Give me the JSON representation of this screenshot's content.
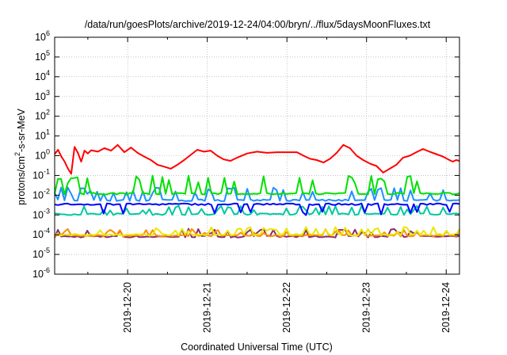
{
  "chart_data": {
    "type": "line",
    "title": "/data/run/goesPlots/archive/2019-12-24/04:00/bryn/../flux/5daysMoonFluxes.txt",
    "xlabel": "Coordinated Universal Time (UTC)",
    "ylabel": {
      "base": "protons/cm",
      "exp": "2",
      "rest": "-s-sr-MeV"
    },
    "x_range": [
      "2019-12-19T02:00",
      "2019-12-24T04:00"
    ],
    "ylim": [
      1e-06,
      1000000.0
    ],
    "y_scale": "log",
    "grid": true,
    "legend": "none",
    "x_ticks": [
      {
        "t": "2019-12-20T00:00",
        "label": "2019-12-20"
      },
      {
        "t": "2019-12-21T00:00",
        "label": "2019-12-21"
      },
      {
        "t": "2019-12-22T00:00",
        "label": "2019-12-22"
      },
      {
        "t": "2019-12-23T00:00",
        "label": "2019-12-23"
      },
      {
        "t": "2019-12-24T00:00",
        "label": "2019-12-24"
      }
    ],
    "y_ticks": [
      {
        "v": 1e-06,
        "base": "10",
        "exp": "-6"
      },
      {
        "v": 1e-05,
        "base": "10",
        "exp": "-5"
      },
      {
        "v": 0.0001,
        "base": "10",
        "exp": "-4"
      },
      {
        "v": 0.001,
        "base": "10",
        "exp": "-3"
      },
      {
        "v": 0.01,
        "base": "10",
        "exp": "-2"
      },
      {
        "v": 0.1,
        "base": "10",
        "exp": "-1"
      },
      {
        "v": 1,
        "base": "10",
        "exp": "0"
      },
      {
        "v": 10,
        "base": "10",
        "exp": "1"
      },
      {
        "v": 100,
        "base": "10",
        "exp": "2"
      },
      {
        "v": 1000,
        "base": "10",
        "exp": "3"
      },
      {
        "v": 10000,
        "base": "10",
        "exp": "4"
      },
      {
        "v": 100000,
        "base": "10",
        "exp": "5"
      },
      {
        "v": 1000000,
        "base": "10",
        "exp": "6"
      }
    ],
    "series": [
      {
        "color": "#ff0000",
        "values": [
          [
            "2019-12-19T02:00",
            1.2
          ],
          [
            "2019-12-19T03:00",
            2.0
          ],
          [
            "2019-12-19T04:00",
            0.9
          ],
          [
            "2019-12-19T05:00",
            0.5
          ],
          [
            "2019-12-19T06:00",
            0.22
          ],
          [
            "2019-12-19T07:00",
            0.12
          ],
          [
            "2019-12-19T08:00",
            2.8
          ],
          [
            "2019-12-19T09:00",
            1.4
          ],
          [
            "2019-12-19T10:00",
            0.5
          ],
          [
            "2019-12-19T11:00",
            1.8
          ],
          [
            "2019-12-19T12:00",
            1.3
          ],
          [
            "2019-12-19T13:00",
            1.9
          ],
          [
            "2019-12-19T15:00",
            1.6
          ],
          [
            "2019-12-19T17:00",
            2.4
          ],
          [
            "2019-12-19T19:00",
            1.8
          ],
          [
            "2019-12-19T21:00",
            3.5
          ],
          [
            "2019-12-19T23:00",
            1.5
          ],
          [
            "2019-12-20T01:00",
            2.6
          ],
          [
            "2019-12-20T03:00",
            1.4
          ],
          [
            "2019-12-20T05:00",
            0.9
          ],
          [
            "2019-12-20T07:00",
            0.6
          ],
          [
            "2019-12-20T09:00",
            0.35
          ],
          [
            "2019-12-20T11:00",
            0.28
          ],
          [
            "2019-12-20T13:00",
            0.22
          ],
          [
            "2019-12-20T15:00",
            0.35
          ],
          [
            "2019-12-20T17:00",
            0.6
          ],
          [
            "2019-12-20T19:00",
            1.1
          ],
          [
            "2019-12-20T21:00",
            2.0
          ],
          [
            "2019-12-20T23:00",
            1.6
          ],
          [
            "2019-12-21T01:00",
            1.8
          ],
          [
            "2019-12-21T03:00",
            1.0
          ],
          [
            "2019-12-21T05:00",
            0.65
          ],
          [
            "2019-12-21T07:00",
            0.55
          ],
          [
            "2019-12-21T09:00",
            0.8
          ],
          [
            "2019-12-21T12:00",
            1.3
          ],
          [
            "2019-12-21T15:00",
            1.6
          ],
          [
            "2019-12-21T18:00",
            1.4
          ],
          [
            "2019-12-21T21:00",
            1.5
          ],
          [
            "2019-12-22T00:00",
            1.5
          ],
          [
            "2019-12-22T03:00",
            1.5
          ],
          [
            "2019-12-22T05:00",
            1.0
          ],
          [
            "2019-12-22T07:00",
            0.7
          ],
          [
            "2019-12-22T09:00",
            0.6
          ],
          [
            "2019-12-22T11:00",
            0.45
          ],
          [
            "2019-12-22T13:00",
            0.7
          ],
          [
            "2019-12-22T15:00",
            1.4
          ],
          [
            "2019-12-22T17:00",
            3.5
          ],
          [
            "2019-12-22T19:00",
            2.4
          ],
          [
            "2019-12-22T21:00",
            1.0
          ],
          [
            "2019-12-22T23:00",
            0.6
          ],
          [
            "2019-12-23T01:00",
            0.4
          ],
          [
            "2019-12-23T03:00",
            0.3
          ],
          [
            "2019-12-23T05:00",
            0.14
          ],
          [
            "2019-12-23T07:00",
            0.22
          ],
          [
            "2019-12-23T09:00",
            0.35
          ],
          [
            "2019-12-23T11:00",
            0.8
          ],
          [
            "2019-12-23T13:00",
            1.0
          ],
          [
            "2019-12-23T15:00",
            1.5
          ],
          [
            "2019-12-23T17:00",
            2.2
          ],
          [
            "2019-12-23T19:00",
            1.6
          ],
          [
            "2019-12-23T21:00",
            1.2
          ],
          [
            "2019-12-23T23:00",
            0.9
          ],
          [
            "2019-12-24T01:00",
            0.6
          ],
          [
            "2019-12-24T02:00",
            0.5
          ],
          [
            "2019-12-24T03:00",
            0.6
          ],
          [
            "2019-12-24T04:00",
            0.55
          ]
        ]
      },
      {
        "color": "#00e000",
        "base": 0.012,
        "spike": 0.1
      },
      {
        "color": "#1e90ff",
        "base": 0.0055,
        "spike": 0.025
      },
      {
        "color": "#0000ff",
        "base": 0.0035,
        "dip": 0.0012
      },
      {
        "color": "#00c8a0",
        "base": 0.0011,
        "spike": 0.003
      },
      {
        "color": "#e8e800",
        "base": 0.0001,
        "spike": 0.00025
      },
      {
        "color": "#ff8c00",
        "base": 9e-05,
        "spike": 0.0002
      },
      {
        "color": "#8b2a72",
        "base": 8e-05,
        "spike": 0.0002
      }
    ]
  }
}
